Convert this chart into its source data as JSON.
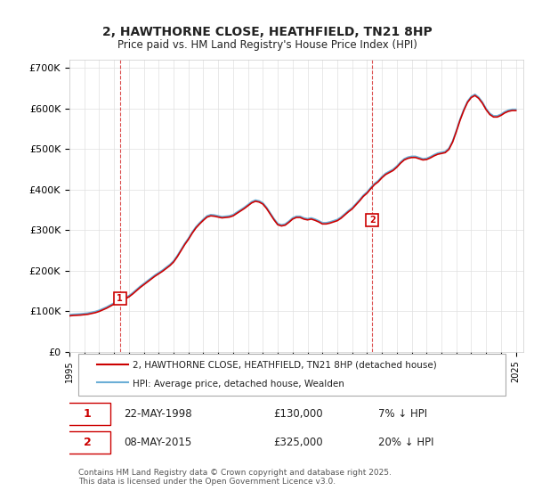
{
  "title": "2, HAWTHORNE CLOSE, HEATHFIELD, TN21 8HP",
  "subtitle": "Price paid vs. HM Land Registry's House Price Index (HPI)",
  "legend_line1": "2, HAWTHORNE CLOSE, HEATHFIELD, TN21 8HP (detached house)",
  "legend_line2": "HPI: Average price, detached house, Wealden",
  "sale1_label": "1",
  "sale1_date": "22-MAY-1998",
  "sale1_price": "£130,000",
  "sale1_hpi": "7% ↓ HPI",
  "sale1_year": 1998.39,
  "sale1_value": 130000,
  "sale2_label": "2",
  "sale2_date": "08-MAY-2015",
  "sale2_price": "£325,000",
  "sale2_hpi": "20% ↓ HPI",
  "sale2_year": 2015.36,
  "sale2_value": 325000,
  "hpi_color": "#6baed6",
  "price_color": "#cc0000",
  "marker_color": "#cc0000",
  "vline_color": "#cc0000",
  "ylim": [
    0,
    720000
  ],
  "yticks": [
    0,
    100000,
    200000,
    300000,
    400000,
    500000,
    600000,
    700000
  ],
  "ytick_labels": [
    "£0",
    "£100K",
    "£200K",
    "£300K",
    "£400K",
    "£500K",
    "£600K",
    "£700K"
  ],
  "footer": "Contains HM Land Registry data © Crown copyright and database right 2025.\nThis data is licensed under the Open Government Licence v3.0.",
  "background_color": "#ffffff",
  "grid_color": "#e0e0e0",
  "hpi_years": [
    1995.0,
    1995.25,
    1995.5,
    1995.75,
    1996.0,
    1996.25,
    1996.5,
    1996.75,
    1997.0,
    1997.25,
    1997.5,
    1997.75,
    1998.0,
    1998.25,
    1998.5,
    1998.75,
    1999.0,
    1999.25,
    1999.5,
    1999.75,
    2000.0,
    2000.25,
    2000.5,
    2000.75,
    2001.0,
    2001.25,
    2001.5,
    2001.75,
    2002.0,
    2002.25,
    2002.5,
    2002.75,
    2003.0,
    2003.25,
    2003.5,
    2003.75,
    2004.0,
    2004.25,
    2004.5,
    2004.75,
    2005.0,
    2005.25,
    2005.5,
    2005.75,
    2006.0,
    2006.25,
    2006.5,
    2006.75,
    2007.0,
    2007.25,
    2007.5,
    2007.75,
    2008.0,
    2008.25,
    2008.5,
    2008.75,
    2009.0,
    2009.25,
    2009.5,
    2009.75,
    2010.0,
    2010.25,
    2010.5,
    2010.75,
    2011.0,
    2011.25,
    2011.5,
    2011.75,
    2012.0,
    2012.25,
    2012.5,
    2012.75,
    2013.0,
    2013.25,
    2013.5,
    2013.75,
    2014.0,
    2014.25,
    2014.5,
    2014.75,
    2015.0,
    2015.25,
    2015.5,
    2015.75,
    2016.0,
    2016.25,
    2016.5,
    2016.75,
    2017.0,
    2017.25,
    2017.5,
    2017.75,
    2018.0,
    2018.25,
    2018.5,
    2018.75,
    2019.0,
    2019.25,
    2019.5,
    2019.75,
    2020.0,
    2020.25,
    2020.5,
    2020.75,
    2021.0,
    2021.25,
    2021.5,
    2021.75,
    2022.0,
    2022.25,
    2022.5,
    2022.75,
    2023.0,
    2023.25,
    2023.5,
    2023.75,
    2024.0,
    2024.25,
    2024.5,
    2024.75,
    2025.0
  ],
  "hpi_values": [
    91000,
    92000,
    92500,
    93000,
    94000,
    95000,
    97000,
    99000,
    102000,
    106000,
    110000,
    115000,
    120000,
    124000,
    128000,
    133000,
    138000,
    145000,
    153000,
    161000,
    168000,
    175000,
    182000,
    189000,
    195000,
    201000,
    208000,
    215000,
    224000,
    237000,
    252000,
    267000,
    280000,
    295000,
    308000,
    318000,
    327000,
    335000,
    338000,
    337000,
    335000,
    333000,
    334000,
    335000,
    338000,
    344000,
    350000,
    356000,
    363000,
    370000,
    374000,
    372000,
    367000,
    356000,
    342000,
    328000,
    316000,
    313000,
    315000,
    322000,
    330000,
    334000,
    334000,
    330000,
    328000,
    330000,
    327000,
    323000,
    318000,
    318000,
    320000,
    323000,
    326000,
    332000,
    340000,
    348000,
    355000,
    365000,
    375000,
    386000,
    394000,
    405000,
    415000,
    422000,
    432000,
    440000,
    445000,
    450000,
    458000,
    468000,
    476000,
    480000,
    482000,
    482000,
    479000,
    476000,
    477000,
    481000,
    486000,
    490000,
    492000,
    494000,
    502000,
    520000,
    546000,
    574000,
    598000,
    618000,
    630000,
    635000,
    628000,
    616000,
    600000,
    588000,
    582000,
    582000,
    586000,
    592000,
    596000,
    598000,
    598000
  ],
  "price_years": [
    1995.0,
    1995.25,
    1995.5,
    1995.75,
    1996.0,
    1996.25,
    1996.5,
    1996.75,
    1997.0,
    1997.25,
    1997.5,
    1997.75,
    1998.0,
    1998.25,
    1998.5,
    1998.75,
    1999.0,
    1999.25,
    1999.5,
    1999.75,
    2000.0,
    2000.25,
    2000.5,
    2000.75,
    2001.0,
    2001.25,
    2001.5,
    2001.75,
    2002.0,
    2002.25,
    2002.5,
    2002.75,
    2003.0,
    2003.25,
    2003.5,
    2003.75,
    2004.0,
    2004.25,
    2004.5,
    2004.75,
    2005.0,
    2005.25,
    2005.5,
    2005.75,
    2006.0,
    2006.25,
    2006.5,
    2006.75,
    2007.0,
    2007.25,
    2007.5,
    2007.75,
    2008.0,
    2008.25,
    2008.5,
    2008.75,
    2009.0,
    2009.25,
    2009.5,
    2009.75,
    2010.0,
    2010.25,
    2010.5,
    2010.75,
    2011.0,
    2011.25,
    2011.5,
    2011.75,
    2012.0,
    2012.25,
    2012.5,
    2012.75,
    2013.0,
    2013.25,
    2013.5,
    2013.75,
    2014.0,
    2014.25,
    2014.5,
    2014.75,
    2015.0,
    2015.25,
    2015.5,
    2015.75,
    2016.0,
    2016.25,
    2016.5,
    2016.75,
    2017.0,
    2017.25,
    2017.5,
    2017.75,
    2018.0,
    2018.25,
    2018.5,
    2018.75,
    2019.0,
    2019.25,
    2019.5,
    2019.75,
    2020.0,
    2020.25,
    2020.5,
    2020.75,
    2021.0,
    2021.25,
    2021.5,
    2021.75,
    2022.0,
    2022.25,
    2022.5,
    2022.75,
    2023.0,
    2023.25,
    2023.5,
    2023.75,
    2024.0,
    2024.25,
    2024.5,
    2024.75,
    2025.0
  ],
  "price_values": [
    88000,
    89000,
    89500,
    90000,
    91000,
    92000,
    94000,
    96000,
    99000,
    103000,
    107000,
    112000,
    117000,
    121000,
    125000,
    130000,
    135000,
    142000,
    150000,
    158000,
    165000,
    172000,
    179000,
    186000,
    192000,
    198000,
    205000,
    212000,
    221000,
    234000,
    249000,
    264000,
    277000,
    292000,
    305000,
    315000,
    324000,
    332000,
    335000,
    334000,
    332000,
    330000,
    331000,
    332000,
    335000,
    341000,
    347000,
    353000,
    360000,
    367000,
    371000,
    369000,
    364000,
    353000,
    339000,
    325000,
    313000,
    310000,
    312000,
    319000,
    327000,
    331000,
    331000,
    327000,
    325000,
    327000,
    324000,
    320000,
    315000,
    315000,
    317000,
    320000,
    323000,
    329000,
    337000,
    345000,
    352000,
    362000,
    372000,
    383000,
    391000,
    402000,
    412000,
    419000,
    429000,
    437000,
    442000,
    447000,
    455000,
    465000,
    473000,
    477000,
    479000,
    479000,
    476000,
    473000,
    474000,
    478000,
    483000,
    487000,
    489000,
    491000,
    499000,
    517000,
    543000,
    571000,
    595000,
    615000,
    627000,
    632000,
    625000,
    613000,
    597000,
    585000,
    579000,
    579000,
    583000,
    589000,
    593000,
    595000,
    595000
  ]
}
